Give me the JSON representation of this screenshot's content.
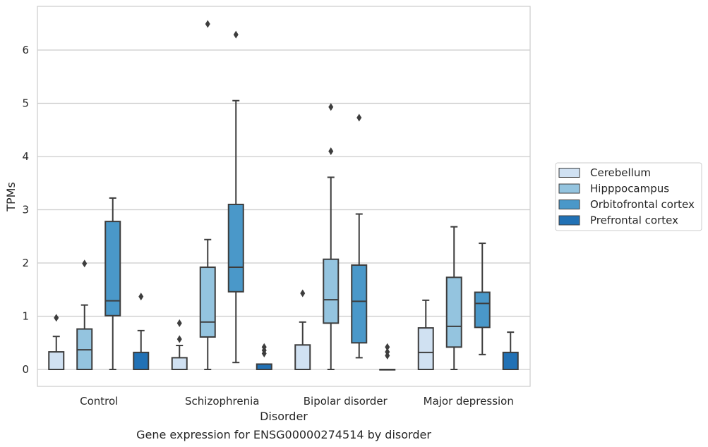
{
  "chart_data": {
    "type": "box",
    "caption": "Gene expression for ENSG00000274514 by disorder",
    "xlabel": "Disorder",
    "ylabel": "TPMs",
    "ylim": [
      -0.32,
      6.85
    ],
    "yticks": [
      0,
      1,
      2,
      3,
      4,
      5,
      6
    ],
    "grid": true,
    "legend_position": "right",
    "categories": [
      "Control",
      "Schizophrenia",
      "Bipolar disorder",
      "Major depression"
    ],
    "series": [
      {
        "name": "Cerebellum",
        "color": "#d0e1f2",
        "boxes": [
          {
            "q1": 0,
            "median": 0,
            "q3": 0.33,
            "whislo": 0,
            "whishi": 0.62,
            "fliers": [
              0.97
            ]
          },
          {
            "q1": 0,
            "median": 0,
            "q3": 0.22,
            "whislo": 0,
            "whishi": 0.45,
            "fliers": [
              0.57,
              0.87
            ]
          },
          {
            "q1": 0,
            "median": 0,
            "q3": 0.46,
            "whislo": 0,
            "whishi": 0.89,
            "fliers": [
              1.43
            ]
          },
          {
            "q1": 0,
            "median": 0.32,
            "q3": 0.78,
            "whislo": 0,
            "whishi": 1.3,
            "fliers": []
          }
        ]
      },
      {
        "name": "Hipppocampus",
        "color": "#94c4df",
        "boxes": [
          {
            "q1": 0,
            "median": 0.37,
            "q3": 0.76,
            "whislo": 0,
            "whishi": 1.21,
            "fliers": [
              1.99
            ]
          },
          {
            "q1": 0.61,
            "median": 0.89,
            "q3": 1.92,
            "whislo": 0,
            "whishi": 2.44,
            "fliers": [
              6.49
            ]
          },
          {
            "q1": 0.87,
            "median": 1.31,
            "q3": 2.07,
            "whislo": 0,
            "whishi": 3.61,
            "fliers": [
              4.1,
              4.93
            ]
          },
          {
            "q1": 0.42,
            "median": 0.81,
            "q3": 1.73,
            "whislo": 0,
            "whishi": 2.68,
            "fliers": []
          }
        ]
      },
      {
        "name": "Orbitofrontal cortex",
        "color": "#4a98c9",
        "boxes": [
          {
            "q1": 1.01,
            "median": 1.29,
            "q3": 2.78,
            "whislo": 0,
            "whishi": 3.22,
            "fliers": []
          },
          {
            "q1": 1.46,
            "median": 1.92,
            "q3": 3.1,
            "whislo": 0.13,
            "whishi": 5.05,
            "fliers": [
              6.29
            ]
          },
          {
            "q1": 0.5,
            "median": 1.28,
            "q3": 1.96,
            "whislo": 0.22,
            "whishi": 2.92,
            "fliers": [
              4.73
            ]
          },
          {
            "q1": 0.79,
            "median": 1.24,
            "q3": 1.45,
            "whislo": 0.28,
            "whishi": 2.37,
            "fliers": []
          }
        ]
      },
      {
        "name": "Prefrontal cortex",
        "color": "#2171b5",
        "boxes": [
          {
            "q1": 0,
            "median": 0,
            "q3": 0.32,
            "whislo": 0,
            "whishi": 0.73,
            "fliers": [
              1.37
            ]
          },
          {
            "q1": 0,
            "median": 0,
            "q3": 0.1,
            "whislo": 0,
            "whishi": 0.1,
            "fliers": [
              0.3,
              0.36,
              0.42
            ]
          },
          {
            "q1": 0,
            "median": 0,
            "q3": 0,
            "whislo": 0,
            "whishi": 0,
            "fliers": [
              0.26,
              0.33,
              0.42
            ]
          },
          {
            "q1": 0,
            "median": 0,
            "q3": 0.32,
            "whislo": 0,
            "whishi": 0.7,
            "fliers": []
          }
        ]
      }
    ]
  }
}
